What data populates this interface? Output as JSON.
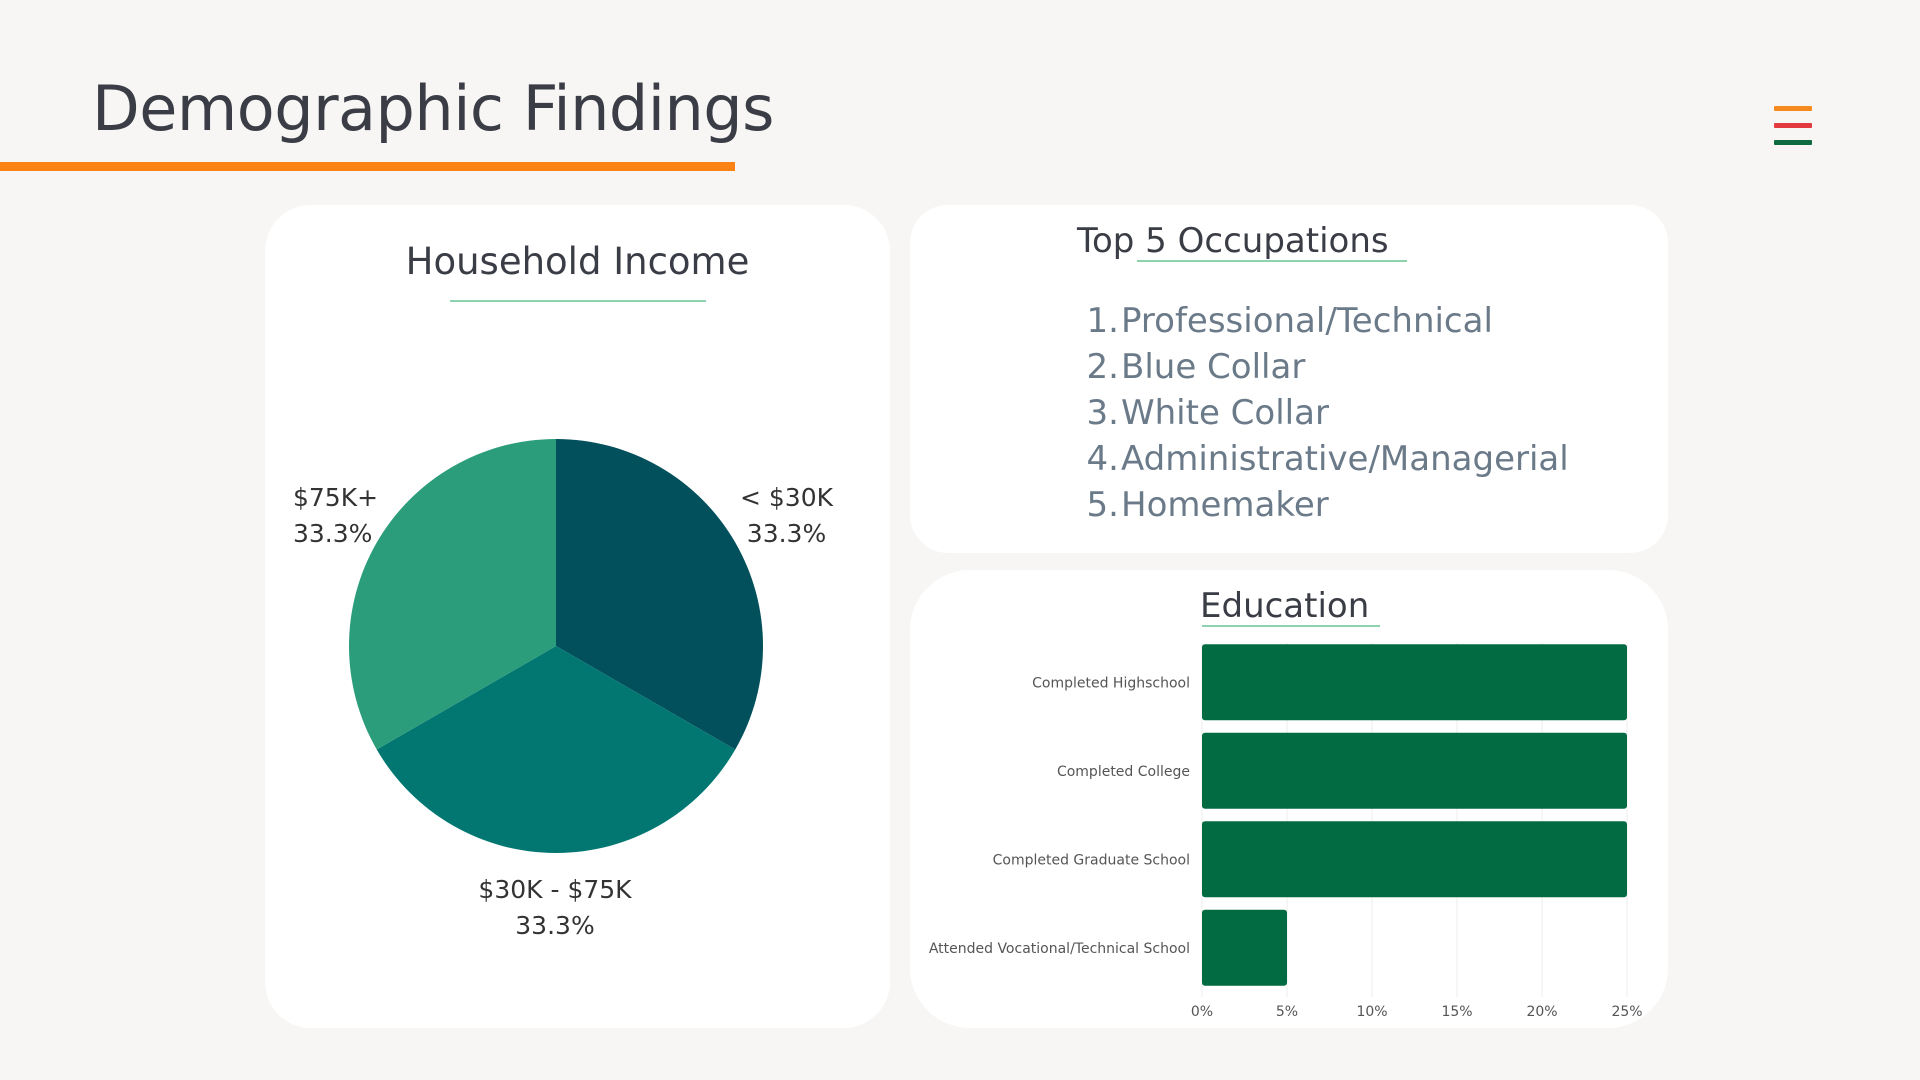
{
  "page_title": "Demographic Findings",
  "colors": {
    "accent_orange": "#fb8214",
    "heading_underline": "#8ed2b0",
    "bar_green": "#026b42",
    "menu_orange": "#f58a1f",
    "menu_red": "#e23a3f",
    "menu_green": "#0e6b3f"
  },
  "menu_icon": "hamburger-menu-icon",
  "occupations": {
    "title": "Top 5 Occupations",
    "items": [
      {
        "num": "1.",
        "label": "Professional/Technical"
      },
      {
        "num": "2.",
        "label": "Blue Collar"
      },
      {
        "num": "3.",
        "label": "White Collar"
      },
      {
        "num": "4.",
        "label": "Administrative/Managerial"
      },
      {
        "num": "5.",
        "label": "Homemaker"
      }
    ]
  },
  "chart_data": [
    {
      "type": "pie",
      "title": "Household Income",
      "slices": [
        {
          "label": "< $30K",
          "value": 33.3,
          "display": "33.3%",
          "color": "#02505c"
        },
        {
          "label": "$30K - $75K",
          "value": 33.3,
          "display": "33.3%",
          "color": "#027771"
        },
        {
          "label": "$75K+",
          "value": 33.3,
          "display": "33.3%",
          "color": "#2b9d7a"
        }
      ]
    },
    {
      "type": "bar",
      "orientation": "horizontal",
      "title": "Education",
      "categories": [
        "Completed Highschool",
        "Completed College",
        "Completed Graduate School",
        "Attended Vocational/Technical School"
      ],
      "values": [
        25,
        25,
        25,
        5
      ],
      "xlim": [
        0,
        25
      ],
      "xticks": [
        "0%",
        "5%",
        "10%",
        "15%",
        "20%",
        "25%"
      ],
      "xtick_values": [
        0,
        5,
        10,
        15,
        20,
        25
      ],
      "grid": true,
      "bar_color": "#026b42"
    }
  ]
}
